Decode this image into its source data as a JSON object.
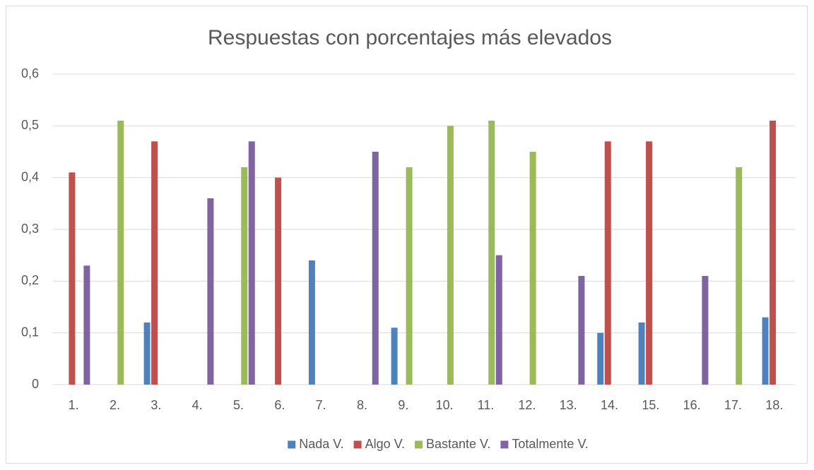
{
  "chart_data": {
    "type": "bar",
    "title": "Respuestas con porcentajes más elevados",
    "categories": [
      "1.",
      "2.",
      "3.",
      "4.",
      "5.",
      "6.",
      "7.",
      "8.",
      "9.",
      "10.",
      "11.",
      "12.",
      "13.",
      "14.",
      "15.",
      "16.",
      "17.",
      "18."
    ],
    "series": [
      {
        "name": "Nada V.",
        "color": "#4f81bd",
        "values": [
          null,
          null,
          0.12,
          null,
          null,
          null,
          0.24,
          null,
          0.11,
          null,
          null,
          null,
          null,
          0.1,
          0.12,
          null,
          null,
          0.13
        ]
      },
      {
        "name": "Algo V.",
        "color": "#c0504d",
        "values": [
          0.41,
          null,
          0.47,
          null,
          null,
          0.4,
          null,
          null,
          null,
          null,
          null,
          null,
          null,
          0.47,
          0.47,
          null,
          null,
          0.51
        ]
      },
      {
        "name": "Bastante V.",
        "color": "#9bbb59",
        "values": [
          null,
          0.51,
          null,
          null,
          0.42,
          null,
          null,
          null,
          0.42,
          0.5,
          0.51,
          0.45,
          null,
          null,
          null,
          null,
          0.42,
          null
        ]
      },
      {
        "name": "Totalmente V.",
        "color": "#8064a2",
        "values": [
          0.23,
          null,
          null,
          0.36,
          0.47,
          null,
          null,
          0.45,
          null,
          null,
          0.25,
          null,
          0.21,
          null,
          null,
          0.21,
          null,
          null
        ]
      }
    ],
    "ylim": [
      0,
      0.6
    ],
    "yticks": [
      0,
      {
        "value": 0.1,
        "label": "0,1"
      },
      {
        "value": 0.2,
        "label": "0,2"
      },
      {
        "value": 0.3,
        "label": "0,3"
      },
      {
        "value": 0.4,
        "label": "0,4"
      },
      {
        "value": 0.5,
        "label": "0,5"
      },
      {
        "value": 0.6,
        "label": "0,6"
      }
    ],
    "grid": true,
    "legend": "bottom"
  }
}
